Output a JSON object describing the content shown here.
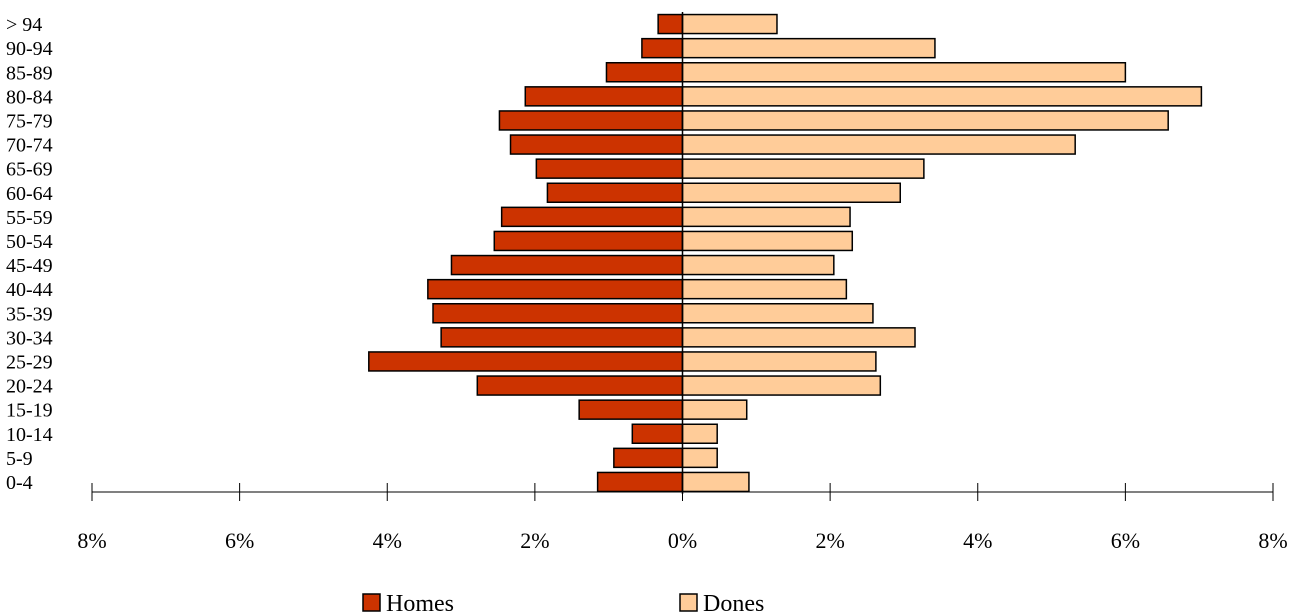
{
  "chart_data": {
    "type": "bar",
    "orientation": "horizontal",
    "layout": "population-pyramid",
    "categories": [
      "0-4",
      "5-9",
      "10-14",
      "15-19",
      "20-24",
      "25-29",
      "30-34",
      "35-39",
      "40-44",
      "45-49",
      "50-54",
      "55-59",
      "60-64",
      "65-69",
      "70-74",
      "75-79",
      "80-84",
      "85-89",
      "90-94",
      "> 94"
    ],
    "series": [
      {
        "name": "Homes",
        "side": "left",
        "color": "#cc3300",
        "values": [
          1.15,
          0.93,
          0.68,
          1.4,
          2.78,
          4.25,
          3.27,
          3.38,
          3.45,
          3.13,
          2.55,
          2.45,
          1.83,
          1.98,
          2.33,
          2.48,
          2.13,
          1.03,
          0.55,
          0.33
        ]
      },
      {
        "name": "Dones",
        "side": "right",
        "color": "#ffcc99",
        "values": [
          0.9,
          0.47,
          0.47,
          0.87,
          2.68,
          2.62,
          3.15,
          2.58,
          2.22,
          2.05,
          2.3,
          2.27,
          2.95,
          3.27,
          5.32,
          6.58,
          7.03,
          6.0,
          3.42,
          1.28
        ]
      }
    ],
    "xlim": [
      -8,
      8
    ],
    "x_ticks": [
      -8,
      -6,
      -4,
      -2,
      0,
      2,
      4,
      6,
      8
    ],
    "x_tick_labels": [
      "8%",
      "6%",
      "4%",
      "2%",
      "0%",
      "2%",
      "4%",
      "6%",
      "8%"
    ],
    "unit": "%",
    "grid": false,
    "legend": {
      "position": "bottom",
      "entries": [
        "Homes",
        "Dones"
      ]
    }
  }
}
